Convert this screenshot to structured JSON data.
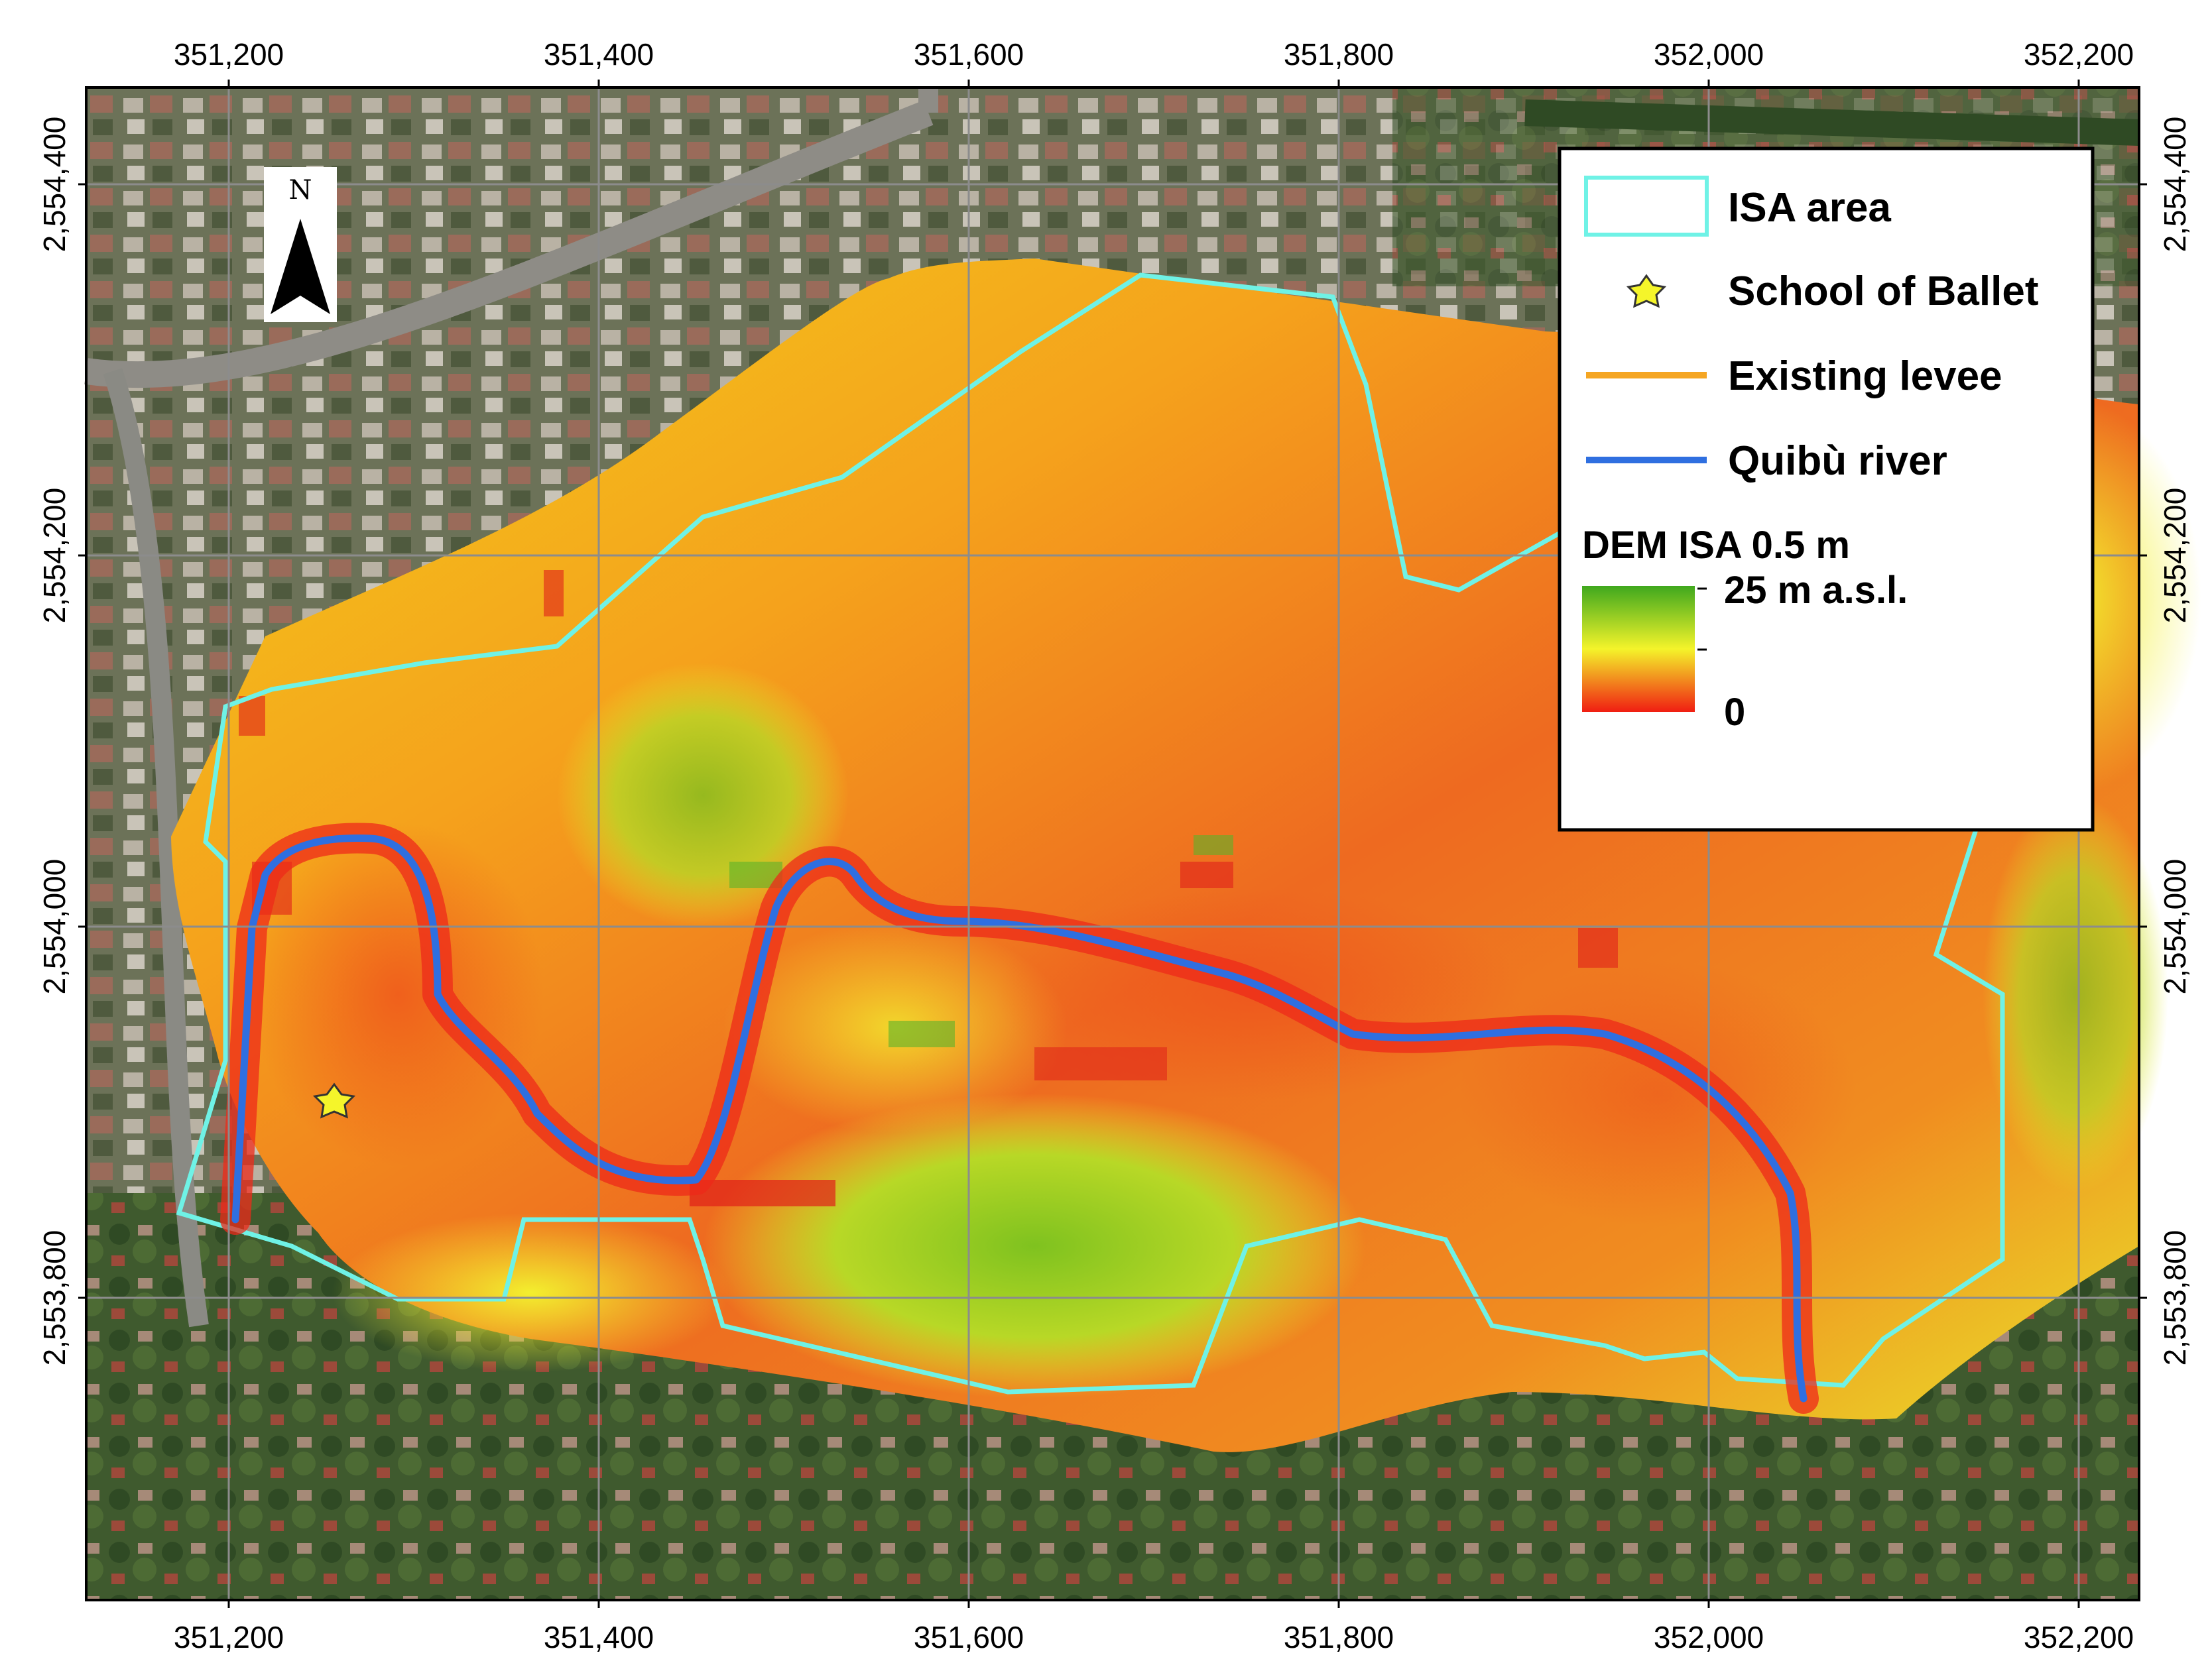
{
  "map": {
    "x_ticks": [
      "351,200",
      "351,400",
      "351,600",
      "351,800",
      "352,000",
      "352,200"
    ],
    "y_ticks": [
      "2,554,400",
      "2,554,200",
      "2,554,000",
      "2,553,800"
    ],
    "north_label": "N"
  },
  "legend": {
    "isa_area": "ISA area",
    "school": "School of Ballet",
    "levee": "Existing levee",
    "river": "Quibù river",
    "dem_title": "DEM ISA 0.5 m",
    "dem_max": "25 m a.s.l.",
    "dem_min": "0"
  },
  "colors": {
    "isa_outline": "#6ff2e6",
    "levee": "#f5a623",
    "river": "#2f6fe0",
    "dem_high": "#3fa81e",
    "dem_mid": "#f4f42a",
    "dem_low": "#f01e12"
  }
}
